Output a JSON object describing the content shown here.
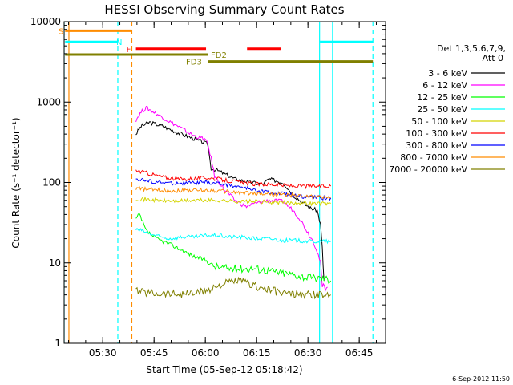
{
  "chart_data": {
    "type": "line",
    "title": "HESSI Observing Summary Count Rates",
    "xlabel": "Start Time (05-Sep-12 05:18:42)",
    "ylabel": "Count Rate (s⁻¹ detector⁻¹)",
    "yscale": "log",
    "xlim_minutes": [
      0,
      94
    ],
    "ylim": [
      1,
      10000
    ],
    "x_ticks": [
      {
        "label": "05:30",
        "min": 11.3
      },
      {
        "label": "05:45",
        "min": 26.3
      },
      {
        "label": "06:00",
        "min": 41.3
      },
      {
        "label": "06:15",
        "min": 56.3
      },
      {
        "label": "06:30",
        "min": 71.3
      },
      {
        "label": "06:45",
        "min": 86.3
      }
    ],
    "y_ticks": [
      {
        "label": "1",
        "value": 1
      },
      {
        "label": "10",
        "value": 10
      },
      {
        "label": "100",
        "value": 100
      },
      {
        "label": "1000",
        "value": 1000
      },
      {
        "label": "10000",
        "value": 10000
      }
    ],
    "legend": {
      "title_line1": "Det 1,3,5,6,7,9,",
      "title_line2": "Att 0",
      "placement": "right"
    },
    "series": [
      {
        "name": "3 - 6 keV",
        "color": "#000000",
        "points": [
          [
            21,
            400
          ],
          [
            22.5,
            500
          ],
          [
            25,
            560
          ],
          [
            29,
            500
          ],
          [
            33,
            420
          ],
          [
            38,
            350
          ],
          [
            42,
            300
          ],
          [
            43,
            150
          ],
          [
            45,
            140
          ],
          [
            50,
            110
          ],
          [
            55,
            100
          ],
          [
            58,
            95
          ],
          [
            60,
            110
          ],
          [
            64,
            100
          ],
          [
            67,
            70
          ],
          [
            70,
            55
          ],
          [
            72,
            48
          ],
          [
            74,
            45
          ],
          [
            75,
            30
          ],
          [
            75.5,
            15
          ],
          [
            76,
            6
          ]
        ]
      },
      {
        "name": "6 - 12 keV",
        "color": "#ff00ff",
        "points": [
          [
            21,
            600
          ],
          [
            22.5,
            750
          ],
          [
            24,
            850
          ],
          [
            26,
            760
          ],
          [
            30,
            600
          ],
          [
            34,
            480
          ],
          [
            38,
            380
          ],
          [
            41,
            350
          ],
          [
            42,
            300
          ],
          [
            43,
            200
          ],
          [
            44,
            120
          ],
          [
            47,
            80
          ],
          [
            50,
            60
          ],
          [
            53,
            50
          ],
          [
            56,
            55
          ],
          [
            60,
            60
          ],
          [
            64,
            58
          ],
          [
            67,
            45
          ],
          [
            69,
            35
          ],
          [
            71,
            25
          ],
          [
            73,
            18
          ],
          [
            74,
            14
          ],
          [
            75,
            10
          ],
          [
            75.5,
            5
          ],
          [
            77,
            5
          ]
        ]
      },
      {
        "name": "12 - 25 keV",
        "color": "#00ff00",
        "points": [
          [
            21,
            35
          ],
          [
            22,
            40
          ],
          [
            24,
            25
          ],
          [
            27,
            20
          ],
          [
            31,
            17
          ],
          [
            35,
            14
          ],
          [
            38,
            12
          ],
          [
            41,
            11
          ],
          [
            44,
            9
          ],
          [
            48,
            8.5
          ],
          [
            52,
            8.5
          ],
          [
            56,
            8.5
          ],
          [
            60,
            8
          ],
          [
            64,
            7.5
          ],
          [
            68,
            7
          ],
          [
            72,
            6.5
          ],
          [
            76,
            6.5
          ],
          [
            78,
            6
          ]
        ]
      },
      {
        "name": "25 - 50 keV",
        "color": "#00ffff",
        "points": [
          [
            21,
            26
          ],
          [
            23,
            25
          ],
          [
            25,
            23
          ],
          [
            28,
            21
          ],
          [
            31,
            20
          ],
          [
            34,
            21
          ],
          [
            38,
            21
          ],
          [
            42,
            22
          ],
          [
            45,
            22
          ],
          [
            48,
            21
          ],
          [
            52,
            21
          ],
          [
            56,
            20
          ],
          [
            60,
            20
          ],
          [
            64,
            19
          ],
          [
            68,
            19
          ],
          [
            72,
            18.5
          ],
          [
            75,
            18.5
          ],
          [
            78,
            18.5
          ]
        ]
      },
      {
        "name": "50 - 100 keV",
        "color": "#d4d400",
        "points": [
          [
            21,
            63
          ],
          [
            25,
            61
          ],
          [
            30,
            59
          ],
          [
            34,
            59
          ],
          [
            38,
            60
          ],
          [
            42,
            60
          ],
          [
            45,
            60
          ],
          [
            48,
            59
          ],
          [
            52,
            58
          ],
          [
            56,
            58
          ],
          [
            60,
            57
          ],
          [
            64,
            56
          ],
          [
            68,
            56
          ],
          [
            72,
            55
          ],
          [
            76,
            55
          ],
          [
            78,
            55
          ]
        ]
      },
      {
        "name": "100 - 300 keV",
        "color": "#ff0000",
        "points": [
          [
            21,
            140
          ],
          [
            23,
            135
          ],
          [
            26,
            125
          ],
          [
            30,
            115
          ],
          [
            34,
            110
          ],
          [
            38,
            112
          ],
          [
            42,
            115
          ],
          [
            45,
            110
          ],
          [
            48,
            105
          ],
          [
            52,
            100
          ],
          [
            56,
            95
          ],
          [
            60,
            95
          ],
          [
            64,
            92
          ],
          [
            68,
            90
          ],
          [
            72,
            90
          ],
          [
            76,
            90
          ],
          [
            78,
            90
          ]
        ]
      },
      {
        "name": "300 - 800 keV",
        "color": "#0000ff",
        "points": [
          [
            21,
            112
          ],
          [
            24,
            105
          ],
          [
            28,
            100
          ],
          [
            32,
            98
          ],
          [
            36,
            98
          ],
          [
            40,
            100
          ],
          [
            44,
            98
          ],
          [
            47,
            95
          ],
          [
            50,
            90
          ],
          [
            53,
            85
          ],
          [
            56,
            80
          ],
          [
            60,
            75
          ],
          [
            64,
            72
          ],
          [
            68,
            68
          ],
          [
            72,
            66
          ],
          [
            76,
            64
          ],
          [
            78,
            64
          ]
        ]
      },
      {
        "name": "800 - 7000 keV",
        "color": "#ff8c00",
        "points": [
          [
            21,
            85
          ],
          [
            24,
            82
          ],
          [
            28,
            80
          ],
          [
            32,
            79
          ],
          [
            36,
            80
          ],
          [
            40,
            80
          ],
          [
            44,
            79
          ],
          [
            48,
            77
          ],
          [
            52,
            74
          ],
          [
            56,
            73
          ],
          [
            60,
            72
          ],
          [
            64,
            70
          ],
          [
            68,
            68
          ],
          [
            72,
            67
          ],
          [
            76,
            66
          ],
          [
            78,
            66
          ]
        ]
      },
      {
        "name": "7000 - 20000 keV",
        "color": "#808000",
        "points": [
          [
            21,
            4.5
          ],
          [
            24,
            4.3
          ],
          [
            27,
            4.2
          ],
          [
            30,
            4.2
          ],
          [
            34,
            4.1
          ],
          [
            38,
            4.2
          ],
          [
            41,
            4.4
          ],
          [
            43,
            4.8
          ],
          [
            45,
            5.2
          ],
          [
            47,
            5.5
          ],
          [
            49,
            5.8
          ],
          [
            51,
            6
          ],
          [
            54,
            5.5
          ],
          [
            57,
            5
          ],
          [
            60,
            4.6
          ],
          [
            63,
            4.3
          ],
          [
            66,
            4.1
          ],
          [
            70,
            4
          ],
          [
            74,
            4
          ],
          [
            78,
            4
          ]
        ]
      }
    ],
    "vlines": [
      {
        "min": 0,
        "color": "#00ffff",
        "style": "solid"
      },
      {
        "min": 1.4,
        "color": "#ff8c00",
        "style": "solid"
      },
      {
        "min": 15.7,
        "color": "#00ffff",
        "style": "dash"
      },
      {
        "min": 19.8,
        "color": "#ff8c00",
        "style": "dash"
      },
      {
        "min": 74.7,
        "color": "#00ffff",
        "style": "solid"
      },
      {
        "min": 78.5,
        "color": "#00ffff",
        "style": "solid"
      },
      {
        "min": 90.3,
        "color": "#00ffff",
        "style": "dash"
      }
    ],
    "flag_bars": [
      {
        "label": "S",
        "color": "#ff8c00",
        "y": 7700,
        "segments": [
          [
            0.3,
            19.8
          ]
        ]
      },
      {
        "label": "N",
        "color": "#00ffff",
        "y": 5600,
        "segments": [
          [
            0.3,
            15.7
          ],
          [
            74.8,
            90.3
          ]
        ]
      },
      {
        "label": "F",
        "color": "#ff0000",
        "y": 4600,
        "segments": [
          [
            21,
            41.5
          ],
          [
            53.5,
            63.5
          ]
        ]
      },
      {
        "label": "FD2",
        "color": "#808000",
        "y": 3900,
        "segments": [
          [
            0.3,
            42
          ]
        ]
      },
      {
        "label": "FD3",
        "color": "#808000",
        "y": 3200,
        "segments": [
          [
            42,
            90.3
          ]
        ]
      }
    ]
  },
  "footer": {
    "timestamp": "6-Sep-2012 11:50"
  }
}
